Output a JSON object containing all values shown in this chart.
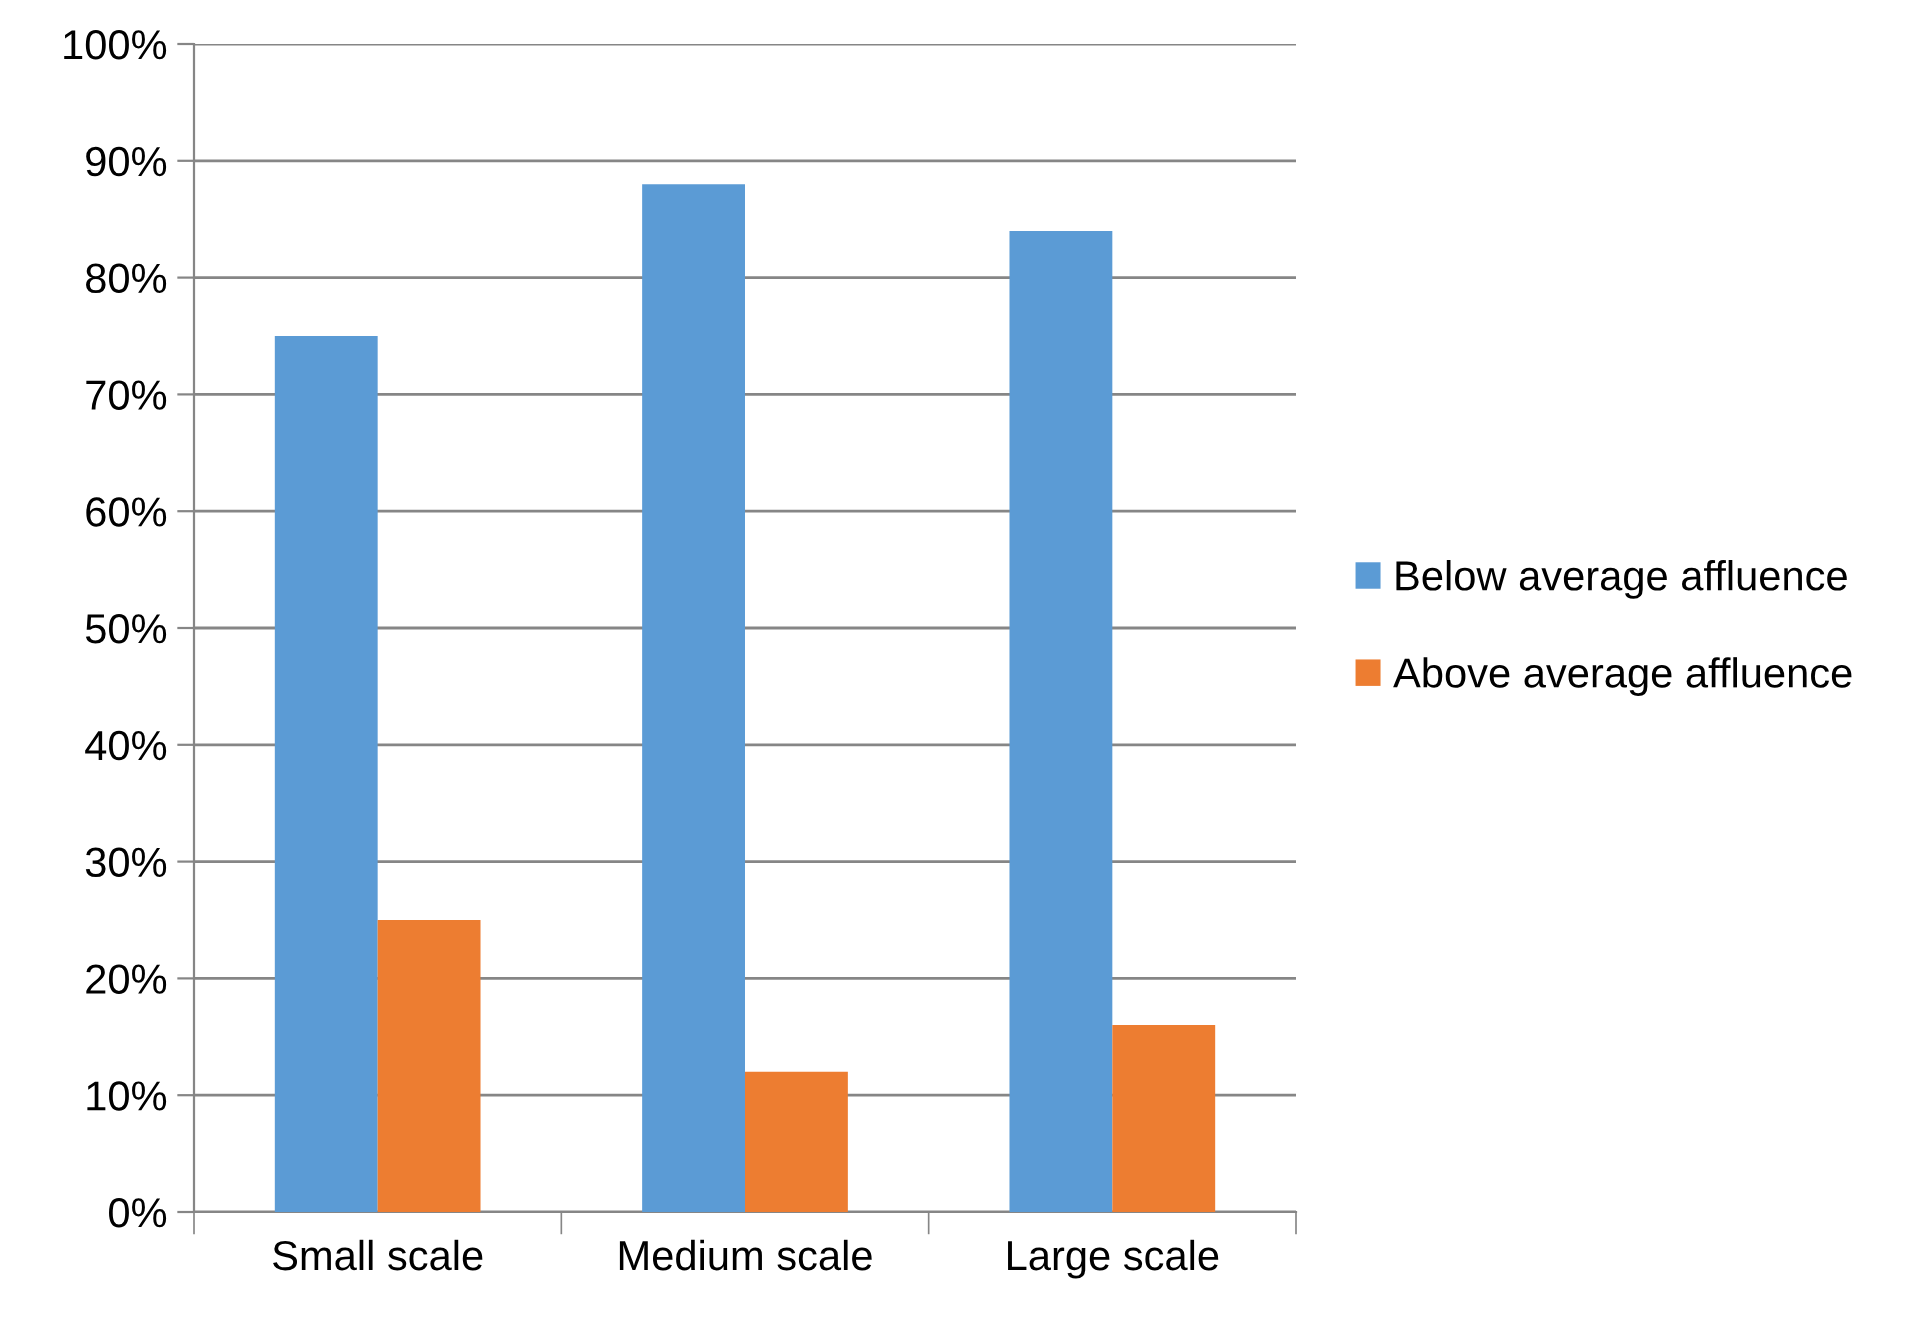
{
  "chart_data": {
    "type": "bar",
    "categories": [
      "Small scale",
      "Medium scale",
      "Large scale"
    ],
    "series": [
      {
        "name": "Below average affluence",
        "color": "#5b9bd5",
        "values": [
          75,
          88,
          84
        ]
      },
      {
        "name": "Above average affluence",
        "color": "#ed7d31",
        "values": [
          25,
          12,
          16
        ]
      }
    ],
    "ylim": [
      0,
      100
    ],
    "yticks": [
      {
        "value": 0,
        "label": "0%"
      },
      {
        "value": 10,
        "label": "10%"
      },
      {
        "value": 20,
        "label": "20%"
      },
      {
        "value": 30,
        "label": "30%"
      },
      {
        "value": 40,
        "label": "40%"
      },
      {
        "value": 50,
        "label": "50%"
      },
      {
        "value": 60,
        "label": "60%"
      },
      {
        "value": 70,
        "label": "70%"
      },
      {
        "value": 80,
        "label": "80%"
      },
      {
        "value": 90,
        "label": "90%"
      },
      {
        "value": 100,
        "label": "100%"
      }
    ],
    "grid": "y",
    "legend": "right"
  }
}
